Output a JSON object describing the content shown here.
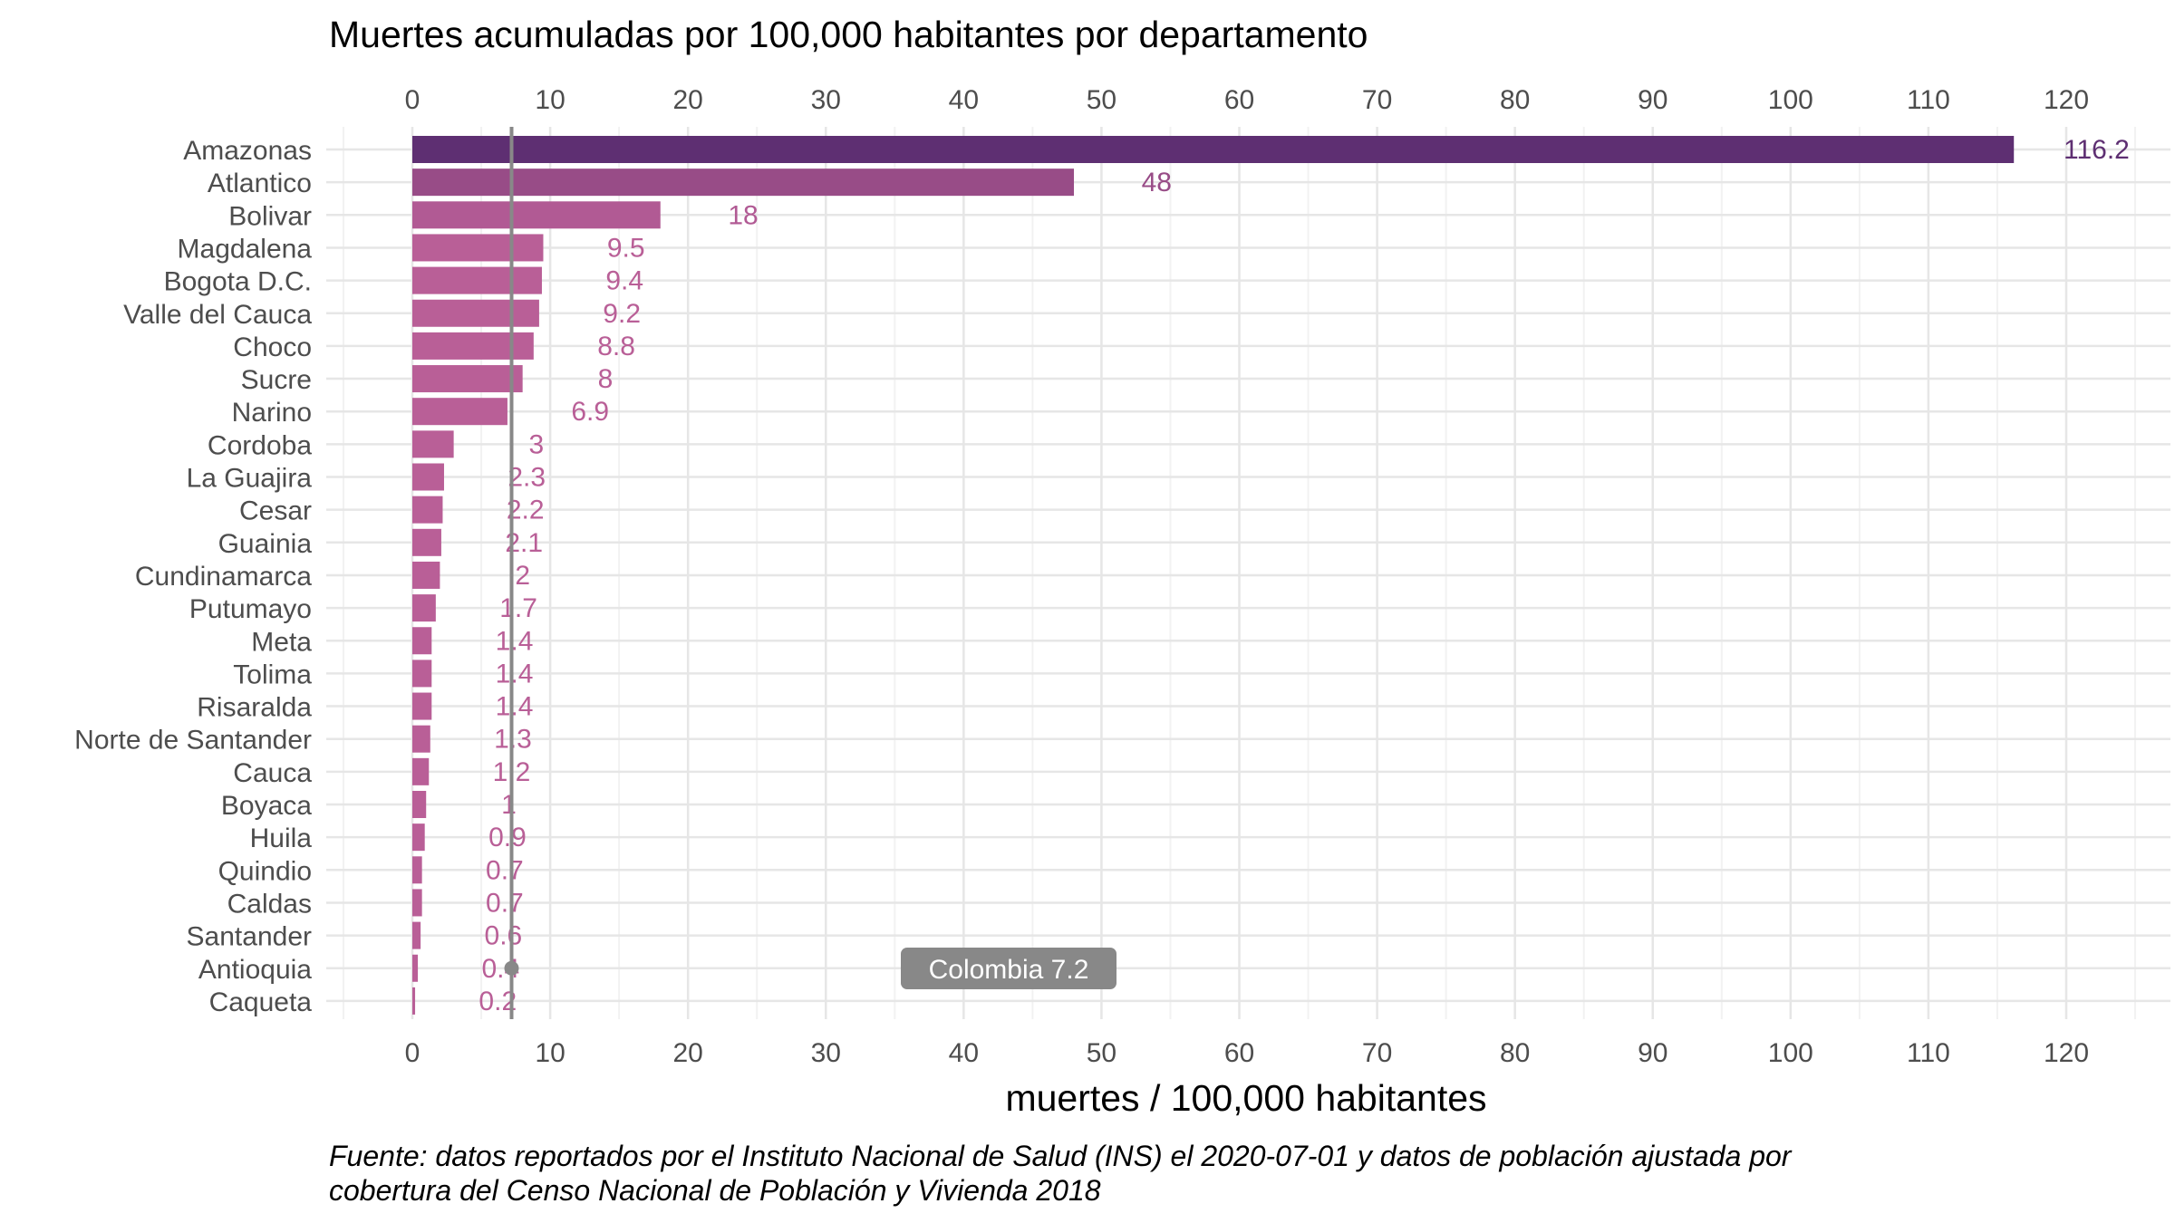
{
  "chart_data": {
    "type": "bar",
    "orientation": "horizontal",
    "title": "Muertes acumuladas por 100,000 habitantes por departamento",
    "xlabel": "muertes / 100,000 habitantes",
    "caption_lines": [
      "Fuente: datos reportados por el Instituto Nacional de Salud (INS) el 2020-07-01 y datos de población ajustada por",
      "cobertura del Censo Nacional de Población y Vivienda 2018"
    ],
    "xlim": [
      -5,
      125
    ],
    "x_ticks": [
      0,
      10,
      20,
      30,
      40,
      50,
      60,
      70,
      80,
      90,
      100,
      110,
      120
    ],
    "x_tick_labels": [
      "0",
      "10",
      "20",
      "30",
      "40",
      "50",
      "60",
      "70",
      "80",
      "90",
      "100",
      "110",
      "120"
    ],
    "axes": "top and bottom",
    "grid": true,
    "categories": [
      "Amazonas",
      "Atlantico",
      "Bolivar",
      "Magdalena",
      "Bogota D.C.",
      "Valle del Cauca",
      "Choco",
      "Sucre",
      "Narino",
      "Cordoba",
      "La Guajira",
      "Cesar",
      "Guainia",
      "Cundinamarca",
      "Putumayo",
      "Meta",
      "Tolima",
      "Risaralda",
      "Norte de Santander",
      "Cauca",
      "Boyaca",
      "Huila",
      "Quindio",
      "Caldas",
      "Santander",
      "Antioquia",
      "Caqueta"
    ],
    "values": [
      116.2,
      48,
      18,
      9.5,
      9.4,
      9.2,
      8.8,
      8,
      6.9,
      3,
      2.3,
      2.2,
      2.1,
      2,
      1.7,
      1.4,
      1.4,
      1.4,
      1.3,
      1.2,
      1,
      0.9,
      0.7,
      0.7,
      0.6,
      0.4,
      0.2
    ],
    "value_labels": [
      "116.2",
      "48",
      "18",
      "9.5",
      "9.4",
      "9.2",
      "8.8",
      "8",
      "6.9",
      "3",
      "2.3",
      "2.2",
      "2.1",
      "2",
      "1.7",
      "1.4",
      "1.4",
      "1.4",
      "1.3",
      "1.2",
      "1",
      "0.9",
      "0.7",
      "0.7",
      "0.6",
      "0.4",
      "0.2"
    ],
    "bar_colors": [
      "#5e2f72",
      "#984c87",
      "#b15a94",
      "#b95f97",
      "#b95f97",
      "#b95f97",
      "#b95f97",
      "#b95f97",
      "#b95f97",
      "#b95f97",
      "#b95f97",
      "#b95f97",
      "#b95f97",
      "#b95f97",
      "#b95f97",
      "#b95f97",
      "#b95f97",
      "#b95f97",
      "#b95f97",
      "#b95f97",
      "#b95f97",
      "#b95f97",
      "#b95f97",
      "#b95f97",
      "#b95f97",
      "#b95f97",
      "#b95f97"
    ],
    "reference": {
      "value": 7.2,
      "label": "Colombia 7.2",
      "color": "#888888"
    }
  }
}
